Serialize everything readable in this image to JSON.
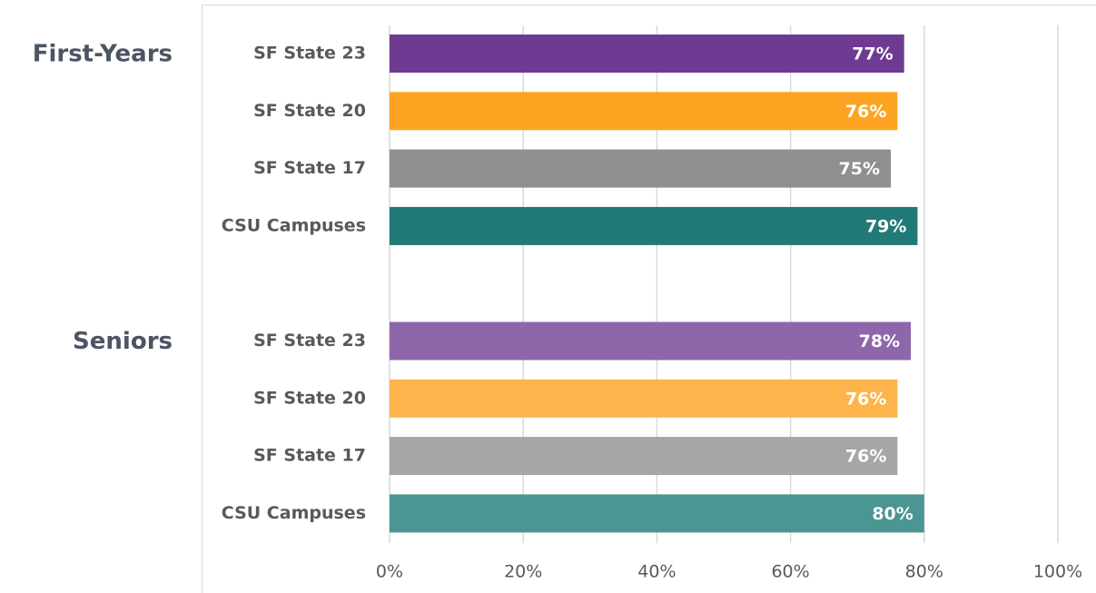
{
  "chart_data": {
    "type": "bar",
    "orientation": "horizontal",
    "groups": [
      {
        "name": "First-Years",
        "categories": [
          "SF State 23",
          "SF State 20",
          "SF State 17",
          "CSU Campuses"
        ],
        "values": [
          77,
          76,
          75,
          79
        ],
        "value_labels": [
          "77%",
          "76%",
          "75%",
          "79%"
        ],
        "colors": [
          "#6f3b92",
          "#fca421",
          "#8f8f8f",
          "#217a78"
        ]
      },
      {
        "name": "Seniors",
        "categories": [
          "SF State 23",
          "SF State 20",
          "SF State 17",
          "CSU Campuses"
        ],
        "values": [
          78,
          76,
          76,
          80
        ],
        "value_labels": [
          "78%",
          "76%",
          "76%",
          "80%"
        ],
        "colors": [
          "#8e66aa",
          "#fdb44b",
          "#a6a6a6",
          "#4b9592"
        ]
      }
    ],
    "xlim": [
      0,
      100
    ],
    "xticks": [
      {
        "value": 0,
        "label": "0%"
      },
      {
        "value": 20,
        "label": "20%"
      },
      {
        "value": 40,
        "label": "40%"
      },
      {
        "value": 60,
        "label": "60%"
      },
      {
        "value": 80,
        "label": "80%"
      },
      {
        "value": 100,
        "label": "100%"
      }
    ],
    "grid": true
  }
}
